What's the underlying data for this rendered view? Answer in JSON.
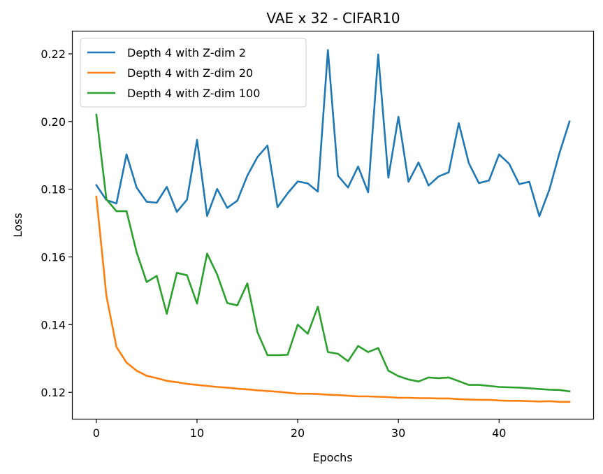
{
  "chart_data": {
    "type": "line",
    "title": "VAE x 32 - CIFAR10",
    "xlabel": "Epochs",
    "ylabel": "Loss",
    "xlim": [
      -2.35,
      49.35
    ],
    "ylim": [
      0.1122,
      0.2266
    ],
    "xticks": [
      0,
      10,
      20,
      30,
      40
    ],
    "yticks": [
      0.12,
      0.14,
      0.16,
      0.18,
      0.2,
      0.22
    ],
    "ytick_labels": [
      "0.12",
      "0.14",
      "0.16",
      "0.18",
      "0.20",
      "0.22"
    ],
    "grid": false,
    "legend_position": "top-left",
    "x": [
      0,
      1,
      2,
      3,
      4,
      5,
      6,
      7,
      8,
      9,
      10,
      11,
      12,
      13,
      14,
      15,
      16,
      17,
      18,
      19,
      20,
      21,
      22,
      23,
      24,
      25,
      26,
      27,
      28,
      29,
      30,
      31,
      32,
      33,
      34,
      35,
      36,
      37,
      38,
      39,
      40,
      41,
      42,
      43,
      44,
      45,
      46,
      47
    ],
    "series": [
      {
        "name": "Depth 4 with Z-dim 2",
        "color": "#1f77b4",
        "values": [
          0.1812,
          0.1768,
          0.1758,
          0.1903,
          0.1805,
          0.1763,
          0.176,
          0.1807,
          0.1733,
          0.1769,
          0.1946,
          0.1721,
          0.1801,
          0.1745,
          0.1766,
          0.184,
          0.1895,
          0.1929,
          0.1747,
          0.1788,
          0.1823,
          0.1817,
          0.1793,
          0.2211,
          0.184,
          0.1805,
          0.1867,
          0.1791,
          0.2198,
          0.1834,
          0.2014,
          0.1822,
          0.1879,
          0.1811,
          0.1838,
          0.185,
          0.1995,
          0.1877,
          0.1818,
          0.1826,
          0.1903,
          0.1875,
          0.1815,
          0.1822,
          0.172,
          0.1799,
          0.1907,
          0.2
        ]
      },
      {
        "name": "Depth 4 with Z-dim 20",
        "color": "#ff7f0e",
        "values": [
          0.1778,
          0.1485,
          0.1334,
          0.1288,
          0.1264,
          0.1249,
          0.1242,
          0.1234,
          0.123,
          0.1225,
          0.1222,
          0.1219,
          0.1216,
          0.1214,
          0.1211,
          0.1209,
          0.1206,
          0.1204,
          0.1202,
          0.1199,
          0.1196,
          0.1196,
          0.1195,
          0.1193,
          0.1192,
          0.119,
          0.1188,
          0.1188,
          0.1187,
          0.1186,
          0.1184,
          0.1184,
          0.1183,
          0.1183,
          0.1182,
          0.1182,
          0.118,
          0.1179,
          0.1178,
          0.1178,
          0.1176,
          0.1175,
          0.1175,
          0.1174,
          0.1173,
          0.1174,
          0.1172,
          0.1172
        ]
      },
      {
        "name": "Depth 4 with Z-dim 100",
        "color": "#2ca02c",
        "values": [
          0.202,
          0.177,
          0.1735,
          0.1735,
          0.1614,
          0.1526,
          0.1544,
          0.1432,
          0.1553,
          0.1546,
          0.1462,
          0.161,
          0.1548,
          0.1464,
          0.1457,
          0.1522,
          0.1378,
          0.131,
          0.131,
          0.1311,
          0.14,
          0.1373,
          0.1453,
          0.1319,
          0.1314,
          0.1292,
          0.1337,
          0.1319,
          0.1331,
          0.1264,
          0.1248,
          0.1238,
          0.1232,
          0.1244,
          0.1242,
          0.1244,
          0.1233,
          0.1222,
          0.1222,
          0.1219,
          0.1216,
          0.1215,
          0.1214,
          0.1212,
          0.121,
          0.1208,
          0.1207,
          0.1203
        ]
      }
    ]
  }
}
